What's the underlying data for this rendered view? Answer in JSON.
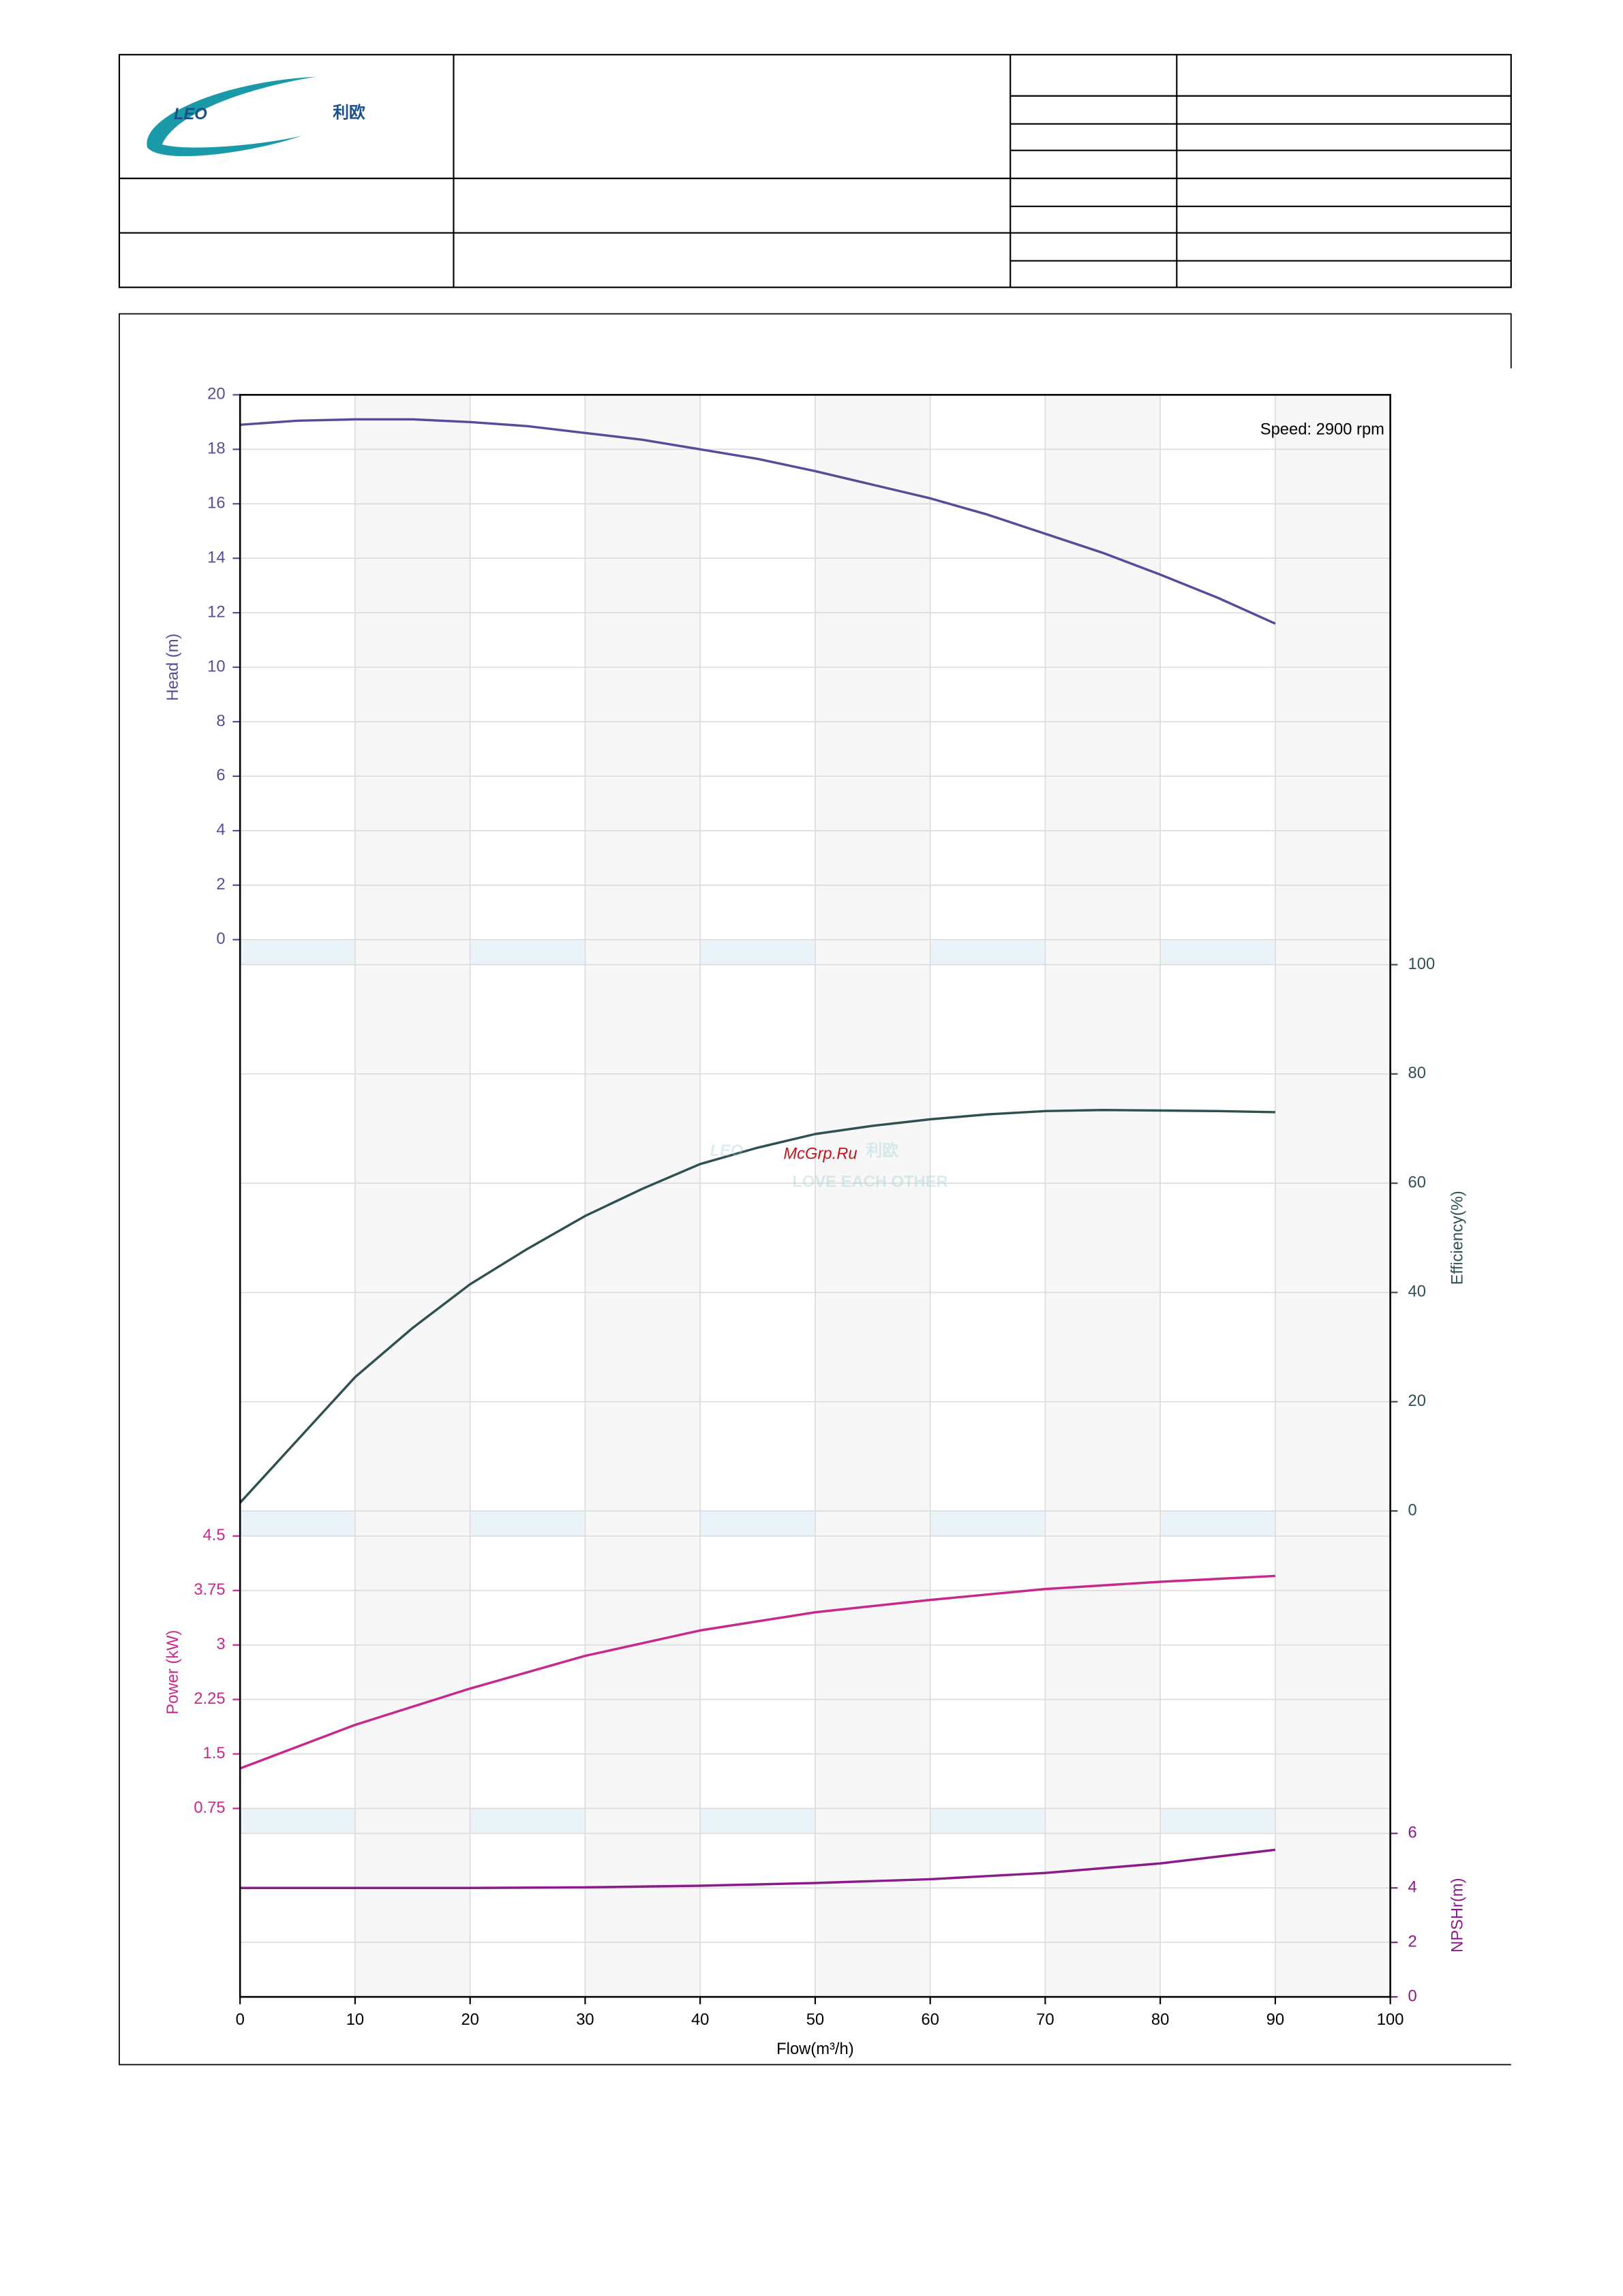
{
  "header": {
    "logo": "LEO",
    "logo_cn": "利欧"
  },
  "watermark": {
    "text": "McGrp.Ru",
    "logo": "LEO",
    "logo_cn": "利欧",
    "slogan": "LOVE EACH OTHER"
  },
  "chart_data": [
    {
      "type": "line",
      "annotation": "Speed: 2900 rpm",
      "y_label": "Head (m)",
      "y_axis_side": "left",
      "axis_color": "#5b4a9c",
      "grid": true,
      "xlim": [
        0,
        100
      ],
      "ylim": [
        0,
        20
      ],
      "yticks": [
        0,
        2,
        4,
        6,
        8,
        10,
        12,
        14,
        16,
        18,
        20
      ],
      "x": [
        0,
        5,
        10,
        15,
        20,
        25,
        30,
        35,
        40,
        45,
        50,
        55,
        60,
        65,
        70,
        75,
        80,
        85,
        90
      ],
      "series": [
        {
          "color": "#5b4a9c",
          "values": [
            18.9,
            19.05,
            19.1,
            19.1,
            19.0,
            18.85,
            18.6,
            18.35,
            18.0,
            17.65,
            17.2,
            16.7,
            16.2,
            15.6,
            14.9,
            14.2,
            13.4,
            12.55,
            11.6
          ]
        }
      ]
    },
    {
      "type": "line",
      "y_label": "Efficiency(%)",
      "y_axis_side": "right",
      "axis_color": "#2f5050",
      "grid": true,
      "xlim": [
        0,
        100
      ],
      "ylim": [
        0,
        100
      ],
      "yticks": [
        0,
        20,
        40,
        60,
        80,
        100
      ],
      "x": [
        0,
        5,
        10,
        15,
        20,
        25,
        30,
        35,
        40,
        45,
        50,
        55,
        60,
        65,
        70,
        75,
        80,
        85,
        90
      ],
      "series": [
        {
          "color": "#2f5050",
          "values": [
            1.5,
            13,
            24.5,
            33.5,
            41.5,
            48,
            54,
            59,
            63.5,
            66.5,
            69,
            70.5,
            71.7,
            72.6,
            73.2,
            73.4,
            73.3,
            73.2,
            73
          ]
        }
      ]
    },
    {
      "type": "line",
      "y_label": "Power (kW)",
      "y_axis_side": "left",
      "axis_color": "#c8288c",
      "grid": true,
      "xlim": [
        0,
        100
      ],
      "ylim": [
        0.75,
        4.5
      ],
      "yticks": [
        0.75,
        1.5,
        2.25,
        3,
        3.75,
        4.5
      ],
      "x": [
        0,
        10,
        20,
        30,
        40,
        50,
        60,
        70,
        80,
        90
      ],
      "series": [
        {
          "color": "#c8288c",
          "values": [
            1.3,
            1.9,
            2.4,
            2.85,
            3.2,
            3.45,
            3.62,
            3.77,
            3.87,
            3.95
          ]
        }
      ]
    },
    {
      "type": "line",
      "y_label": "NPSHr(m)",
      "y_axis_side": "right",
      "axis_color": "#8b1a8b",
      "grid": true,
      "x_label": "Flow(m³/h)",
      "xlim": [
        0,
        100
      ],
      "xticks": [
        0,
        10,
        20,
        30,
        40,
        50,
        60,
        70,
        80,
        90,
        100
      ],
      "ylim": [
        0,
        6
      ],
      "yticks": [
        0,
        2,
        4,
        6
      ],
      "x": [
        0,
        10,
        20,
        30,
        40,
        50,
        60,
        70,
        80,
        90
      ],
      "series": [
        {
          "color": "#8b1a8b",
          "values": [
            4.0,
            4.0,
            4.0,
            4.02,
            4.08,
            4.18,
            4.32,
            4.55,
            4.9,
            5.4
          ]
        }
      ]
    }
  ]
}
